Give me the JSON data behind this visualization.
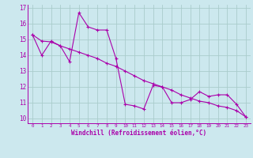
{
  "xlabel": "Windchill (Refroidissement éolien,°C)",
  "bg_color": "#cce8ee",
  "line_color": "#aa00aa",
  "grid_color": "#aacccc",
  "series1_y": [
    15.3,
    14.0,
    14.9,
    14.6,
    13.6,
    16.7,
    15.8,
    15.6,
    15.6,
    13.8,
    10.9,
    10.8,
    10.6,
    12.1,
    12.0,
    11.0,
    11.0,
    11.2,
    11.7,
    11.4,
    11.5,
    11.5,
    10.9,
    10.1
  ],
  "series2_y": [
    15.3,
    14.9,
    14.85,
    14.6,
    14.4,
    14.2,
    14.0,
    13.8,
    13.5,
    13.3,
    13.0,
    12.7,
    12.4,
    12.2,
    12.0,
    11.8,
    11.5,
    11.3,
    11.1,
    11.0,
    10.8,
    10.7,
    10.5,
    10.1
  ],
  "ylim": [
    9.7,
    17.2
  ],
  "yticks": [
    10,
    11,
    12,
    13,
    14,
    15,
    16,
    17
  ],
  "xlim": [
    -0.5,
    23.5
  ],
  "xticks": [
    0,
    1,
    2,
    3,
    4,
    5,
    6,
    7,
    8,
    9,
    10,
    11,
    12,
    13,
    14,
    15,
    16,
    17,
    18,
    19,
    20,
    21,
    22,
    23
  ],
  "xtick_labels": [
    "0",
    "1",
    "2",
    "3",
    "4",
    "5",
    "6",
    "7",
    "8",
    "9",
    "10",
    "11",
    "12",
    "13",
    "14",
    "15",
    "16",
    "17",
    "18",
    "19",
    "20",
    "21",
    "22",
    "23"
  ]
}
